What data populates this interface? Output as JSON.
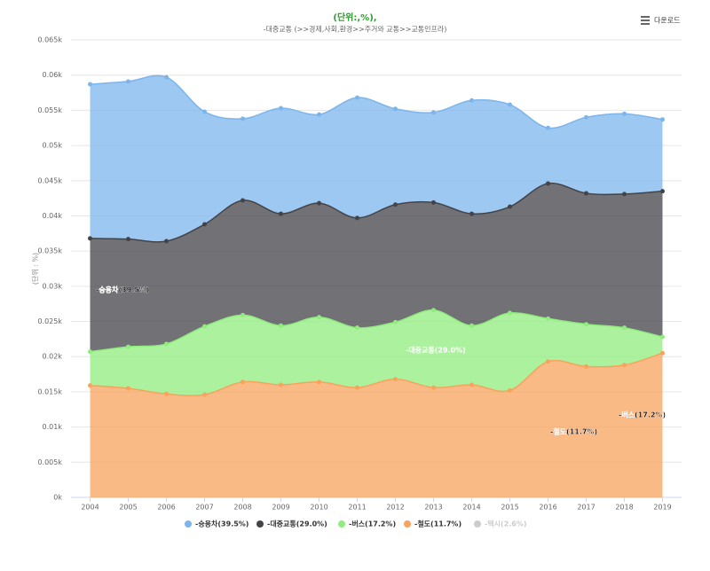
{
  "chart_data": {
    "type": "stacked-area",
    "title": "(단위:,%),",
    "subtitle": "-대중교통 (>>경제,사회,환경>>주거와 교통>>교통인프라)",
    "y_label": "(단위 : %)",
    "download": "다운로드",
    "categories": [
      "2004",
      "2005",
      "2006",
      "2007",
      "2008",
      "2009",
      "2010",
      "2011",
      "2012",
      "2013",
      "2014",
      "2015",
      "2016",
      "2017",
      "2018",
      "2019"
    ],
    "ylim": [
      0,
      65
    ],
    "yticks": [
      {
        "value": 0,
        "label": "0k"
      },
      {
        "value": 5,
        "label": "0.005k"
      },
      {
        "value": 10,
        "label": "0.01k"
      },
      {
        "value": 15,
        "label": "0.015k"
      },
      {
        "value": 20,
        "label": "0.02k"
      },
      {
        "value": 25,
        "label": "0.025k"
      },
      {
        "value": 30,
        "label": "0.03k"
      },
      {
        "value": 35,
        "label": "0.035k"
      },
      {
        "value": 40,
        "label": "0.04k"
      },
      {
        "value": 45,
        "label": "0.045k"
      },
      {
        "value": 50,
        "label": "0.05k"
      },
      {
        "value": 55,
        "label": "0.055k"
      },
      {
        "value": 60,
        "label": "0.06k"
      },
      {
        "value": 65,
        "label": "0.065k"
      }
    ],
    "grid": true,
    "series": [
      {
        "name": "-승용차(39.5%)",
        "color": "#7cb5ec",
        "values": [
          21.9,
          22.4,
          23.3,
          16.0,
          11.6,
          15.0,
          12.6,
          17.1,
          13.6,
          12.8,
          16.1,
          14.5,
          7.9,
          10.8,
          11.4,
          10.2
        ]
      },
      {
        "name": "-대중교통(29.0%)",
        "color": "#434348",
        "values": [
          16.1,
          15.3,
          14.6,
          14.5,
          16.3,
          15.9,
          16.2,
          15.6,
          16.7,
          15.3,
          15.9,
          15.1,
          19.2,
          18.6,
          19.0,
          20.7
        ]
      },
      {
        "name": "-버스(17.2%)",
        "color": "#90ed7d",
        "values": [
          4.8,
          5.9,
          7.1,
          9.7,
          9.5,
          8.4,
          9.2,
          8.5,
          8.1,
          11.0,
          8.4,
          11.0,
          6.1,
          6.0,
          5.3,
          2.3
        ]
      },
      {
        "name": "-철도(11.7%)",
        "color": "#f7a35c",
        "values": [
          15.9,
          15.5,
          14.7,
          14.6,
          16.4,
          16.0,
          16.4,
          15.6,
          16.8,
          15.6,
          16.0,
          15.2,
          19.3,
          18.6,
          18.8,
          20.5
        ]
      },
      {
        "name": "-택시(2.6%)",
        "color": "#cccccc",
        "visible": false,
        "values": [
          null,
          null,
          null,
          null,
          null,
          null,
          null,
          null,
          null,
          null,
          null,
          null,
          null,
          null,
          null,
          null
        ]
      }
    ]
  }
}
